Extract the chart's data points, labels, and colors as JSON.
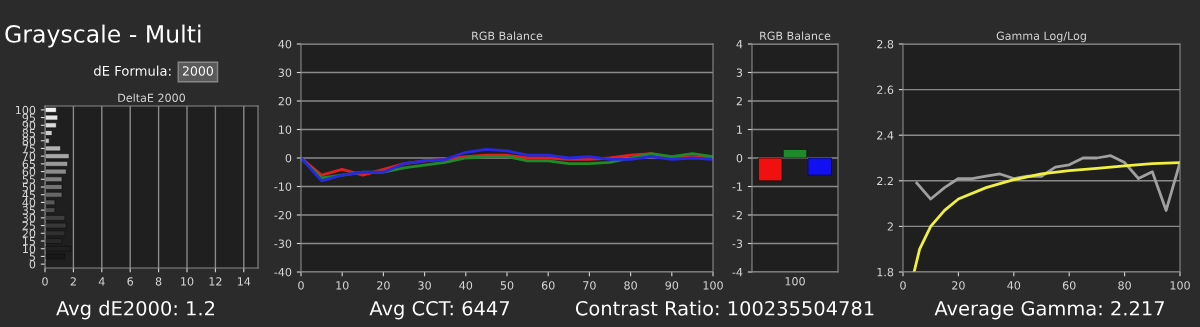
{
  "chart_data": [
    {
      "type": "bar",
      "orientation": "horizontal",
      "title": "DeltaE 2000",
      "annotations": [
        "Grayscale - Multi",
        "dE Formula:",
        "2000",
        "Avg dE2000: 1.2"
      ],
      "categories": [
        "100",
        "95",
        "90",
        "85",
        "80",
        "75",
        "70",
        "65",
        "60",
        "55",
        "50",
        "45",
        "40",
        "35",
        "30",
        "25",
        "20",
        "15",
        "10",
        "5",
        "0"
      ],
      "values": [
        0.8,
        0.9,
        0.8,
        0.5,
        0.3,
        1.1,
        1.7,
        1.6,
        1.5,
        1.2,
        1.2,
        1.2,
        0.7,
        0.7,
        1.4,
        1.5,
        1.4,
        1.2,
        1.8,
        1.4,
        0
      ],
      "colors": [
        "#f2f2f2",
        "#e6e6e6",
        "#d9d9d9",
        "#cccccc",
        "#c0c0c0",
        "#b3b3b3",
        "#a6a6a6",
        "#999999",
        "#8c8c8c",
        "#808080",
        "#737373",
        "#666666",
        "#595959",
        "#4d4d4d",
        "#404040",
        "#383838",
        "#303030",
        "#282828",
        "#202020",
        "#181818",
        "#101010"
      ],
      "xlim": [
        0,
        15
      ],
      "xticks": [
        0,
        2,
        4,
        6,
        8,
        10,
        12,
        14
      ],
      "grid": "x"
    },
    {
      "type": "line",
      "title": "RGB Balance",
      "annotations": [
        "Avg CCT: 6447"
      ],
      "x": [
        0,
        5,
        10,
        15,
        20,
        25,
        30,
        35,
        40,
        45,
        50,
        55,
        60,
        65,
        70,
        75,
        80,
        85,
        90,
        95,
        100
      ],
      "series": [
        {
          "color": "#e02020",
          "values": [
            0,
            -6,
            -4,
            -6,
            -4,
            -2,
            -1,
            -0.5,
            0.5,
            1,
            1,
            0,
            0,
            -0.5,
            -0.5,
            0,
            1,
            1.5,
            0,
            0.5,
            0
          ]
        },
        {
          "color": "#1f8a2a",
          "values": [
            0,
            -7,
            -6,
            -5,
            -5,
            -3.5,
            -2.5,
            -1.5,
            0,
            0.5,
            0.5,
            -1,
            -1,
            -2,
            -2,
            -1.5,
            0,
            1.5,
            0.5,
            1.5,
            0.5
          ]
        },
        {
          "color": "#2828e0",
          "values": [
            0,
            -8,
            -6,
            -5,
            -5,
            -2,
            -1,
            -0.5,
            2,
            3,
            2.5,
            1,
            1,
            0,
            0.5,
            -0.5,
            -0.5,
            0.5,
            -0.5,
            0,
            -0.5
          ]
        }
      ],
      "xlim": [
        0,
        100
      ],
      "xticks": [
        0,
        10,
        20,
        30,
        40,
        50,
        60,
        70,
        80,
        90,
        100
      ],
      "ylim": [
        -40,
        40
      ],
      "yticks": [
        -40,
        -30,
        -20,
        -10,
        0,
        10,
        20,
        30,
        40
      ],
      "grid": "y",
      "marker": "none"
    },
    {
      "type": "bar",
      "title": "RGB Balance",
      "annotations": [
        "Contrast Ratio: 100235504781"
      ],
      "categories": [
        "100"
      ],
      "series": [
        {
          "color": "#f01010",
          "values": [
            -0.8
          ]
        },
        {
          "color": "#1f8a2a",
          "values": [
            0.3
          ]
        },
        {
          "color": "#1010f0",
          "values": [
            -0.6
          ]
        }
      ],
      "ylim": [
        -4,
        4
      ],
      "yticks": [
        -4,
        -3,
        -2,
        -1,
        0,
        1,
        2,
        3,
        4
      ],
      "grid": "y"
    },
    {
      "type": "line",
      "title": "Gamma Log/Log",
      "annotations": [
        "Average Gamma: 2.217"
      ],
      "series": [
        {
          "color": "#a0a0a0",
          "x": [
            5,
            10,
            15,
            20,
            25,
            30,
            35,
            40,
            45,
            50,
            55,
            60,
            65,
            70,
            75,
            80,
            85,
            90,
            95,
            100
          ],
          "values": [
            2.19,
            2.12,
            2.17,
            2.21,
            2.21,
            2.22,
            2.23,
            2.21,
            2.22,
            2.22,
            2.26,
            2.27,
            2.3,
            2.3,
            2.31,
            2.28,
            2.21,
            2.24,
            2.07,
            2.28
          ]
        },
        {
          "color": "#f0f040",
          "x": [
            4,
            6,
            10,
            15,
            20,
            30,
            40,
            50,
            60,
            70,
            80,
            90,
            100
          ],
          "values": [
            1.8,
            1.9,
            2.0,
            2.07,
            2.12,
            2.17,
            2.205,
            2.23,
            2.245,
            2.255,
            2.265,
            2.275,
            2.28
          ]
        }
      ],
      "xlim": [
        0,
        100
      ],
      "xticks": [
        0,
        20,
        40,
        60,
        80,
        100
      ],
      "ylim": [
        1.8,
        2.8
      ],
      "yticks": [
        1.8,
        2,
        2.2,
        2.4,
        2.6,
        2.8
      ],
      "grid": "y",
      "marker": "none"
    }
  ]
}
